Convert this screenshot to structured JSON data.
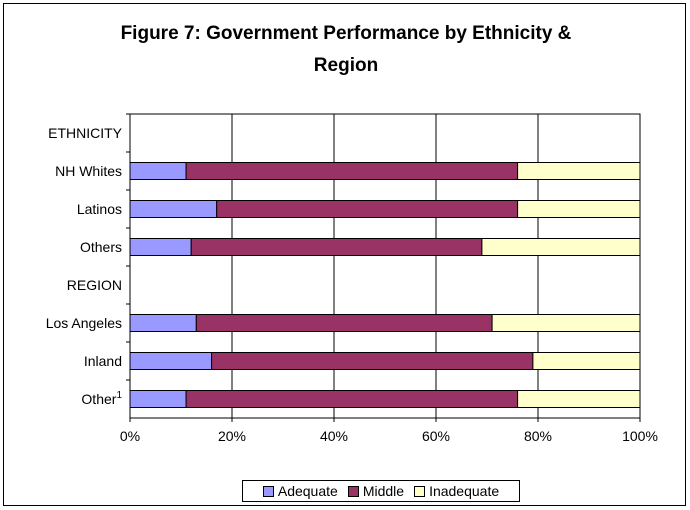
{
  "chart_data": {
    "type": "bar",
    "orientation": "horizontal",
    "stacked": true,
    "percent_stacked": true,
    "title": "Figure 7: Government Performance by Ethnicity & Region",
    "title_lines": [
      "Figure 7: Government Performance by Ethnicity &",
      "Region"
    ],
    "categories": [
      "ETHNICITY",
      "NH Whites",
      "Latinos",
      "Others",
      "REGION",
      "Los Angeles",
      "Inland",
      "Other"
    ],
    "category_superscripts": {
      "Other": "1"
    },
    "series": [
      {
        "name": "Adequate",
        "color": "#9999ff",
        "values": [
          null,
          11,
          17,
          12,
          null,
          13,
          16,
          11
        ]
      },
      {
        "name": "Middle",
        "color": "#993366",
        "values": [
          null,
          65,
          59,
          57,
          null,
          58,
          63,
          65
        ]
      },
      {
        "name": "Inadequate",
        "color": "#ffffcc",
        "values": [
          null,
          24,
          24,
          31,
          null,
          29,
          21,
          24
        ]
      }
    ],
    "x_ticks": [
      "0%",
      "20%",
      "40%",
      "60%",
      "80%",
      "100%"
    ],
    "xlim": [
      0,
      100
    ],
    "grid": true,
    "legend_position": "bottom",
    "xlabel": "",
    "ylabel": ""
  }
}
